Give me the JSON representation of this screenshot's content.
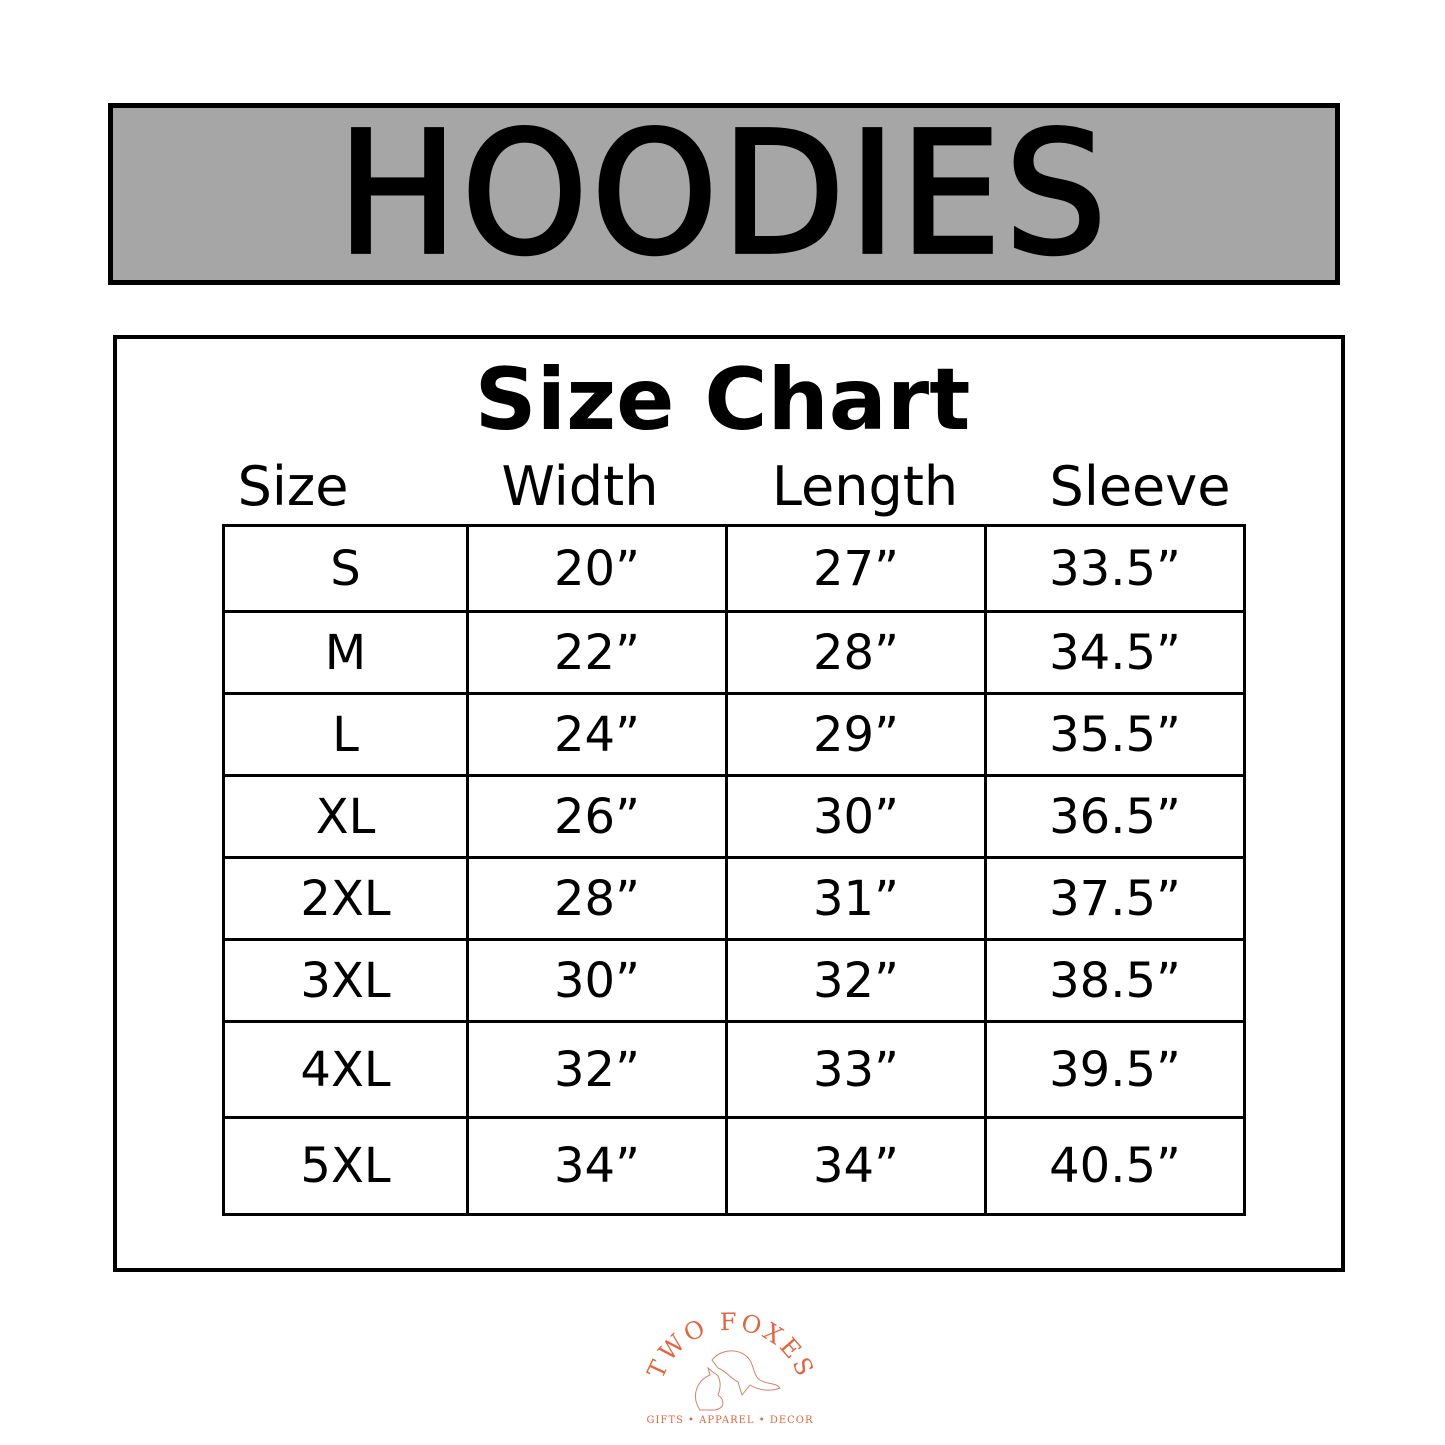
{
  "banner": {
    "title": "HOODIES",
    "background": "#a6a6a6"
  },
  "chart": {
    "title": "Size Chart",
    "columns": [
      "Size",
      "Width",
      "Length",
      "Sleeve"
    ],
    "rows": [
      [
        "S",
        "20”",
        "27”",
        "33.5”"
      ],
      [
        "M",
        "22”",
        "28”",
        "34.5”"
      ],
      [
        "L",
        "24”",
        "29”",
        "35.5”"
      ],
      [
        "XL",
        "26”",
        "30”",
        "36.5”"
      ],
      [
        "2XL",
        "28”",
        "31”",
        "37.5”"
      ],
      [
        "3XL",
        "30”",
        "32”",
        "38.5”"
      ],
      [
        "4XL",
        "32”",
        "33”",
        "39.5”"
      ],
      [
        "5XL",
        "34”",
        "34”",
        "40.5”"
      ]
    ]
  },
  "logo": {
    "name": "TWO FOXES",
    "tagline": "GIFTS • APPAREL • DECOR",
    "color": "#e0663f"
  }
}
